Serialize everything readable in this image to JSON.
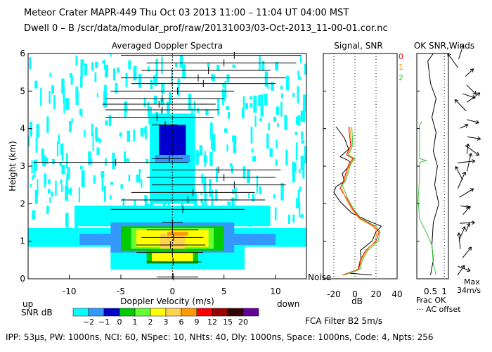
{
  "header": {
    "line1": "Meteor Crater   MAPR-449   Thu Oct 03 2013 11:00 – 11:04 UT 04:00 MST",
    "line2": "Dwell  0 –  B   /scr/data/modular_prof/raw/20131003/03-Oct-2013_11-00-01.cor.nc"
  },
  "footer": {
    "params": "IPP:  53μs,   PW: 1000ns,   NCI:  60,   NSpec: 10,  NHts: 40,   Dly: 1000ns,   Space: 1000ns,   Code: 4,   Npts: 256",
    "filter": "FCA Filter B2   5m/s"
  },
  "chart_data": [
    {
      "type": "heatmap",
      "title": "Averaged Doppler Spectra",
      "xlabel": "Doppler Velocity (m/s)",
      "ylabel": "Height (km)",
      "xlim": [
        -14,
        13
      ],
      "ylim": [
        0,
        6
      ],
      "xticks": [
        -10,
        -5,
        0,
        5,
        10
      ],
      "yticks": [
        0,
        1,
        2,
        3,
        4,
        5,
        6
      ],
      "left_note": "up",
      "right_note": "down",
      "noise_label": "Noise",
      "colorbar": {
        "label": "SNR dB",
        "ticks": [
          "−2",
          "−1",
          "0",
          "1",
          "2",
          "3",
          "6",
          "9",
          "12",
          "15",
          "20"
        ],
        "colors": [
          "#00ffff",
          "#3399ff",
          "#0000cc",
          "#00cc00",
          "#66ff33",
          "#ffff00",
          "#ffd24d",
          "#ff9900",
          "#ff0000",
          "#990000",
          "#330000",
          "#660099"
        ]
      },
      "bars": [
        {
          "h": 0.05,
          "lo": -1.5,
          "hi": 2.5,
          "c": 0.1
        },
        {
          "h": 0.45,
          "lo": -2.5,
          "hi": 2.8,
          "c": 0.1
        },
        {
          "h": 0.7,
          "lo": -3.5,
          "hi": 3.0,
          "c": 0.0
        },
        {
          "h": 0.9,
          "lo": -3.5,
          "hi": 3.2,
          "c": -0.2
        },
        {
          "h": 1.1,
          "lo": -3.0,
          "hi": 3.0,
          "c": 0.1
        },
        {
          "h": 1.3,
          "lo": -2.5,
          "hi": 2.5,
          "c": 0.0
        },
        {
          "h": 1.5,
          "lo": -1.0,
          "hi": 1.0,
          "c": 0.0
        },
        {
          "h": 1.85,
          "lo": -6.0,
          "hi": 7.0,
          "c": 1.0
        },
        {
          "h": 2.1,
          "lo": -5.0,
          "hi": 9.0,
          "c": 1.5
        },
        {
          "h": 2.3,
          "lo": -4.0,
          "hi": 8.0,
          "c": 2.0
        },
        {
          "h": 2.5,
          "lo": -2.0,
          "hi": 11.0,
          "c": 6.0
        },
        {
          "h": 2.7,
          "lo": -2.5,
          "hi": 10.0,
          "c": 5.0
        },
        {
          "h": 2.9,
          "lo": -2.0,
          "hi": 10.5,
          "c": 4.5
        },
        {
          "h": 3.1,
          "lo": -13.5,
          "hi": 1.5,
          "c": -5.5
        },
        {
          "h": 3.2,
          "lo": -2.0,
          "hi": 1.0,
          "c": -0.3
        },
        {
          "h": 4.1,
          "lo": -2.0,
          "hi": 0.5,
          "c": -0.7
        },
        {
          "h": 4.3,
          "lo": -6.5,
          "hi": 4.0,
          "c": -1.5
        },
        {
          "h": 4.5,
          "lo": -6.5,
          "hi": 4.5,
          "c": -1.0
        },
        {
          "h": 4.65,
          "lo": -6.8,
          "hi": 4.2,
          "c": -1.3
        },
        {
          "h": 4.8,
          "lo": -6.5,
          "hi": 5.0,
          "c": -1.0
        },
        {
          "h": 5.0,
          "lo": -6.0,
          "hi": 6.0,
          "c": 0.5
        },
        {
          "h": 5.2,
          "lo": -4.0,
          "hi": 10.0,
          "c": 3.0
        },
        {
          "h": 5.35,
          "lo": -5.0,
          "hi": 11.0,
          "c": 2.5
        },
        {
          "h": 5.55,
          "lo": -3.0,
          "hi": 9.5,
          "c": 3.5
        },
        {
          "h": 5.75,
          "lo": -2.5,
          "hi": 12.0,
          "c": 5.0
        },
        {
          "h": 5.95,
          "lo": -5.0,
          "hi": 12.5,
          "c": 6.0
        }
      ]
    },
    {
      "type": "line",
      "title": "Signal, SNR",
      "xlabel": "dB",
      "xlim": [
        -30,
        40
      ],
      "xticks": [
        -20,
        0,
        20,
        40
      ],
      "ylim": [
        0,
        6
      ],
      "series": [
        {
          "name": "signal",
          "color": "#000000",
          "points": [
            [
              16,
              0.1
            ],
            [
              -6,
              0.15
            ],
            [
              3,
              0.25
            ],
            [
              6,
              0.5
            ],
            [
              5,
              0.75
            ],
            [
              16,
              1.0
            ],
            [
              20,
              1.25
            ],
            [
              25,
              1.4
            ],
            [
              12,
              1.55
            ],
            [
              -3,
              1.75
            ],
            [
              -14,
              2.05
            ],
            [
              -20,
              2.3
            ],
            [
              -18,
              2.45
            ],
            [
              -10,
              2.6
            ],
            [
              -12,
              2.8
            ],
            [
              -4,
              3.05
            ],
            [
              -6,
              3.15
            ],
            [
              -14,
              3.25
            ],
            [
              -6,
              3.45
            ],
            [
              -10,
              3.75
            ],
            [
              -18,
              4.05
            ]
          ]
        },
        {
          "name": "0",
          "color": "#ff0000",
          "points": [
            [
              -12,
              0.1
            ],
            [
              3,
              0.25
            ],
            [
              5,
              0.5
            ],
            [
              10,
              0.75
            ],
            [
              20,
              1.0
            ],
            [
              23,
              1.25
            ],
            [
              18,
              1.4
            ],
            [
              5,
              1.6
            ],
            [
              -2,
              1.85
            ],
            [
              -8,
              2.15
            ],
            [
              -14,
              2.4
            ],
            [
              -11,
              2.6
            ],
            [
              -6,
              3.05
            ],
            [
              -2,
              3.2
            ],
            [
              -8,
              3.3
            ],
            [
              -4,
              3.55
            ],
            [
              -6,
              4.05
            ]
          ]
        },
        {
          "name": "1",
          "color": "#ff9900",
          "points": [
            [
              -11,
              0.1
            ],
            [
              4,
              0.25
            ],
            [
              6,
              0.5
            ],
            [
              11,
              0.75
            ],
            [
              19,
              1.0
            ],
            [
              21,
              1.25
            ],
            [
              17,
              1.4
            ],
            [
              4,
              1.6
            ],
            [
              -3,
              1.85
            ],
            [
              -9,
              2.15
            ],
            [
              -13,
              2.45
            ],
            [
              -10,
              2.6
            ],
            [
              -5,
              3.05
            ],
            [
              -1,
              3.2
            ],
            [
              -7,
              3.3
            ],
            [
              -3,
              3.55
            ],
            [
              -5,
              4.05
            ]
          ]
        },
        {
          "name": "2",
          "color": "#33cc33",
          "points": [
            [
              -10,
              0.1
            ],
            [
              5,
              0.25
            ],
            [
              7,
              0.5
            ],
            [
              12,
              0.75
            ],
            [
              22,
              1.0
            ],
            [
              24,
              1.25
            ],
            [
              20,
              1.4
            ],
            [
              6,
              1.6
            ],
            [
              -1,
              1.85
            ],
            [
              -7,
              2.15
            ],
            [
              -12,
              2.5
            ],
            [
              -9,
              2.6
            ],
            [
              -4,
              3.05
            ],
            [
              0,
              3.2
            ],
            [
              -6,
              3.3
            ],
            [
              -2,
              3.55
            ],
            [
              -3,
              4.05
            ]
          ]
        }
      ],
      "ref_lines": [
        -20,
        0,
        20
      ],
      "legend": [
        "0",
        "1",
        "2"
      ]
    },
    {
      "type": "line",
      "title": "OK SNR,Winds",
      "xlabel": "Frac OK",
      "note": "··· AC offset",
      "xlim": [
        0,
        1.15
      ],
      "xticks": [
        0.5,
        1
      ],
      "ylim": [
        0,
        6
      ],
      "series": [
        {
          "name": "frac-ok",
          "color": "#000000",
          "points": [
            [
              0.5,
              0.1
            ],
            [
              0.6,
              0.5
            ],
            [
              0.55,
              0.9
            ],
            [
              0.6,
              1.5
            ],
            [
              0.8,
              2.0
            ],
            [
              0.65,
              2.5
            ],
            [
              0.75,
              3.0
            ],
            [
              0.6,
              3.4
            ],
            [
              0.7,
              3.9
            ],
            [
              0.55,
              4.3
            ],
            [
              0.7,
              4.8
            ],
            [
              0.5,
              5.2
            ],
            [
              0.4,
              5.8
            ],
            [
              0.6,
              6.0
            ]
          ]
        },
        {
          "name": "snr",
          "color": "#33cc33",
          "points": [
            [
              0.7,
              0.1
            ],
            [
              0.6,
              0.4
            ],
            [
              0.55,
              0.9
            ],
            [
              0.3,
              1.3
            ],
            [
              0.1,
              1.6
            ],
            [
              0.05,
              2.1
            ],
            [
              0.1,
              2.7
            ],
            [
              0.1,
              3.1
            ],
            [
              0.35,
              3.15
            ],
            [
              0.1,
              3.2
            ],
            [
              0.1,
              3.8
            ],
            [
              0.1,
              4.1
            ],
            [
              0.2,
              4.2
            ]
          ]
        }
      ],
      "wind_label": "Max\n34m/s"
    }
  ]
}
